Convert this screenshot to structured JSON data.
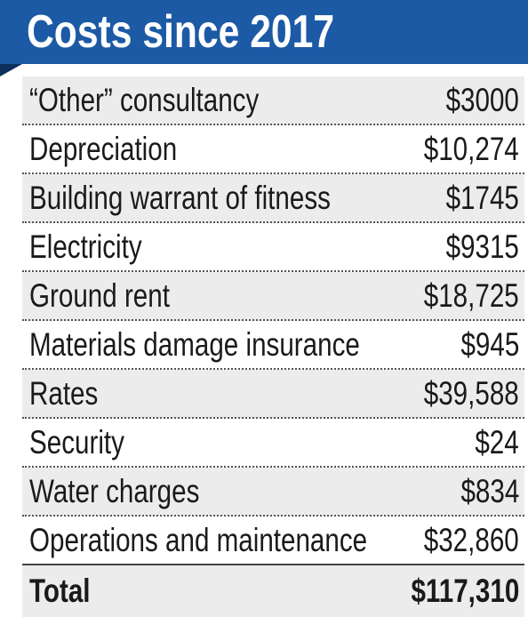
{
  "header": {
    "title": "Costs since 2017"
  },
  "table": {
    "rows": [
      [
        "“Other” consultancy",
        "$3000"
      ],
      [
        "Depreciation",
        "$10,274"
      ],
      [
        "Building warrant of fitness",
        "$1745"
      ],
      [
        "Electricity",
        "$9315"
      ],
      [
        "Ground rent",
        "$18,725"
      ],
      [
        "Materials damage insurance",
        "$945"
      ],
      [
        "Rates",
        "$39,588"
      ],
      [
        "Security",
        "$24"
      ],
      [
        "Water charges",
        "$834"
      ],
      [
        "Operations and maintenance",
        "$32,860"
      ]
    ],
    "total": [
      "Total",
      "$117,310"
    ]
  }
}
